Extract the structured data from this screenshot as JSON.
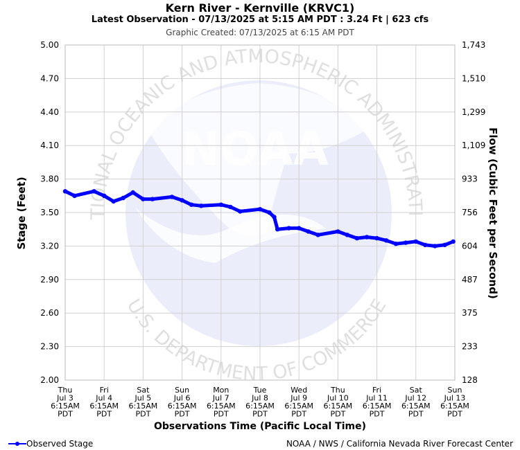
{
  "header": {
    "title": "Kern River - Kernville (KRVC1)",
    "subtitle": "Latest Observation - 07/13/2025 at 5:15 AM PDT : 3.24 Ft | 623 cfs",
    "created": "Graphic Created: 07/13/2025 at 6:15 AM PDT"
  },
  "watermark": {
    "logo_text": "NOAA",
    "ring_top": "NATIONAL OCEANIC AND ATMOSPHERIC ADMINISTRATION",
    "ring_bottom": "U.S. DEPARTMENT OF COMMERCE"
  },
  "colors": {
    "series": "#0000ff",
    "grid": "#d0d0d0",
    "watermark": "#ebedfa"
  },
  "footer": {
    "legend_label": "Observed Stage",
    "credit": "NOAA / NWS / California Nevada River Forecast Center"
  },
  "chart_data": {
    "type": "line",
    "title": "Kern River - Kernville (KRVC1)",
    "xlabel": "Observations Time (Pacific Local Time)",
    "ylabel": "Stage (Feet)",
    "y2label": "Flow (Cubic Feet per Second)",
    "ylim": [
      2.0,
      5.0
    ],
    "y_ticks": [
      "2.00",
      "2.30",
      "2.60",
      "2.90",
      "3.20",
      "3.50",
      "3.80",
      "4.10",
      "4.40",
      "4.70",
      "5.00"
    ],
    "y2_ticks": [
      "128",
      "233",
      "375",
      "487",
      "604",
      "756",
      "933",
      "1,109",
      "1,299",
      "1,510",
      "1,743"
    ],
    "x_ticks": [
      [
        "Thu",
        "Jul 3",
        "6:15AM",
        "PDT"
      ],
      [
        "Fri",
        "Jul 4",
        "6:15AM",
        "PDT"
      ],
      [
        "Sat",
        "Jul 5",
        "6:15AM",
        "PDT"
      ],
      [
        "Sun",
        "Jul 6",
        "6:15AM",
        "PDT"
      ],
      [
        "Mon",
        "Jul 7",
        "6:15AM",
        "PDT"
      ],
      [
        "Tue",
        "Jul 8",
        "6:15AM",
        "PDT"
      ],
      [
        "Wed",
        "Jul 9",
        "6:15AM",
        "PDT"
      ],
      [
        "Thu",
        "Jul 10",
        "6:15AM",
        "PDT"
      ],
      [
        "Fri",
        "Jul 11",
        "6:15AM",
        "PDT"
      ],
      [
        "Sat",
        "Jul 12",
        "6:15AM",
        "PDT"
      ],
      [
        "Sun",
        "Jul 13",
        "6:15AM",
        "PDT"
      ]
    ],
    "grid": true,
    "legend_position": "bottom-left",
    "series": [
      {
        "name": "Observed Stage",
        "x": [
          "2025-07-03 06:15",
          "2025-07-03 12:00",
          "2025-07-04 00:00",
          "2025-07-04 06:15",
          "2025-07-04 12:00",
          "2025-07-04 18:00",
          "2025-07-05 00:00",
          "2025-07-05 06:15",
          "2025-07-05 12:00",
          "2025-07-06 00:00",
          "2025-07-06 06:15",
          "2025-07-06 12:00",
          "2025-07-06 18:00",
          "2025-07-07 06:15",
          "2025-07-07 12:00",
          "2025-07-07 18:00",
          "2025-07-08 06:15",
          "2025-07-08 12:00",
          "2025-07-08 15:00",
          "2025-07-08 17:00",
          "2025-07-09 00:00",
          "2025-07-09 06:15",
          "2025-07-09 12:00",
          "2025-07-09 18:00",
          "2025-07-10 06:15",
          "2025-07-10 12:00",
          "2025-07-10 18:00",
          "2025-07-11 00:00",
          "2025-07-11 06:15",
          "2025-07-11 12:00",
          "2025-07-11 18:00",
          "2025-07-12 00:00",
          "2025-07-12 06:15",
          "2025-07-12 12:00",
          "2025-07-12 18:00",
          "2025-07-13 00:00",
          "2025-07-13 05:15"
        ],
        "y": [
          3.69,
          3.65,
          3.69,
          3.65,
          3.6,
          3.63,
          3.68,
          3.62,
          3.62,
          3.64,
          3.61,
          3.57,
          3.56,
          3.57,
          3.55,
          3.51,
          3.53,
          3.5,
          3.46,
          3.35,
          3.36,
          3.36,
          3.33,
          3.3,
          3.33,
          3.3,
          3.27,
          3.28,
          3.27,
          3.25,
          3.22,
          3.23,
          3.24,
          3.21,
          3.2,
          3.21,
          3.24
        ]
      }
    ]
  }
}
